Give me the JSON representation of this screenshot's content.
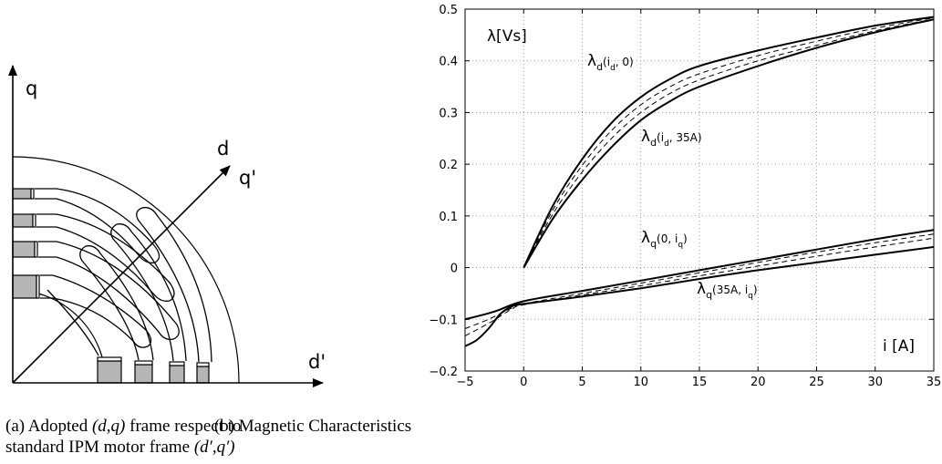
{
  "left_diagram": {
    "axis_q_label": "q",
    "axis_d_label": "d",
    "axis_q_prime_label": "q'",
    "axis_d_prime_label": "d'"
  },
  "captions": {
    "a_tag": "(a)",
    "a_text_1": "Adopted",
    "a_math_1": "(d,q)",
    "a_text_2": "frame respect to",
    "a_text_3": "standard IPM motor frame",
    "a_math_2": "(d′,q′)",
    "b_text": "(b) Magnetic Characteristics"
  },
  "chart_data": {
    "type": "line",
    "y_unit_label": "λ[Vs]",
    "x_unit_label": "i [A]",
    "xlim": [
      -5,
      35
    ],
    "ylim": [
      -0.2,
      0.5
    ],
    "x_ticks": [
      "−5",
      "0",
      "5",
      "10",
      "15",
      "20",
      "25",
      "30",
      "35"
    ],
    "y_ticks": [
      "−0.2",
      "−0.1",
      "0",
      "0.1",
      "0.2",
      "0.3",
      "0.4",
      "0.5"
    ],
    "grid": true,
    "annotations": {
      "ld0": {
        "sym": "λ",
        "sub": "d",
        "args": "(i",
        "argsub": "d",
        "argend": ", 0)"
      },
      "ld35": {
        "sym": "λ",
        "sub": "d",
        "args": "(i",
        "argsub": "d",
        "argend": ", 35A)"
      },
      "lq0": {
        "sym": "λ",
        "sub": "q",
        "args": "(0, i",
        "argsub": "q",
        "argend": ")"
      },
      "lq35": {
        "sym": "λ",
        "sub": "q",
        "args": "(35A, i",
        "argsub": "q",
        "argend": ")"
      }
    },
    "series": [
      {
        "style": "solid",
        "x": [
          0,
          2.5,
          5,
          7.5,
          10,
          12.5,
          15,
          20,
          25,
          30,
          35
        ],
        "y": [
          0,
          0.12,
          0.21,
          0.28,
          0.33,
          0.365,
          0.39,
          0.42,
          0.445,
          0.468,
          0.485
        ]
      },
      {
        "style": "dashed",
        "x": [
          0,
          2.5,
          5,
          7.5,
          10,
          12.5,
          15,
          20,
          25,
          30,
          35
        ],
        "y": [
          0,
          0.112,
          0.198,
          0.265,
          0.315,
          0.35,
          0.375,
          0.41,
          0.438,
          0.463,
          0.483
        ]
      },
      {
        "style": "dashed",
        "x": [
          0,
          2.5,
          5,
          7.5,
          10,
          12.5,
          15,
          20,
          25,
          30,
          35
        ],
        "y": [
          0,
          0.104,
          0.185,
          0.25,
          0.3,
          0.337,
          0.363,
          0.4,
          0.43,
          0.458,
          0.481
        ]
      },
      {
        "style": "solid",
        "x": [
          0,
          2.5,
          5,
          7.5,
          10,
          12.5,
          15,
          20,
          25,
          30,
          35
        ],
        "y": [
          0,
          0.095,
          0.17,
          0.233,
          0.285,
          0.322,
          0.35,
          0.39,
          0.425,
          0.455,
          0.48
        ]
      },
      {
        "style": "solid",
        "x": [
          -5,
          -2.5,
          0,
          5,
          10,
          15,
          20,
          25,
          30,
          35
        ],
        "y": [
          -0.1,
          -0.085,
          -0.065,
          -0.045,
          -0.025,
          -0.005,
          0.015,
          0.035,
          0.055,
          0.073
        ]
      },
      {
        "style": "dashed",
        "x": [
          -5,
          -3,
          -1,
          0,
          5,
          10,
          15,
          20,
          25,
          30,
          35
        ],
        "y": [
          -0.118,
          -0.1,
          -0.078,
          -0.07,
          -0.05,
          -0.03,
          -0.01,
          0.01,
          0.03,
          0.048,
          0.065
        ]
      },
      {
        "style": "dashed",
        "x": [
          -5,
          -3,
          -1,
          0,
          5,
          10,
          15,
          20,
          25,
          30,
          35
        ],
        "y": [
          -0.132,
          -0.108,
          -0.08,
          -0.072,
          -0.053,
          -0.035,
          -0.016,
          0.003,
          0.022,
          0.04,
          0.057
        ]
      },
      {
        "style": "solid",
        "x": [
          -5,
          -4,
          -3,
          -2,
          -1,
          0,
          5,
          10,
          15,
          20,
          25,
          30,
          35
        ],
        "y": [
          -0.152,
          -0.14,
          -0.118,
          -0.09,
          -0.075,
          -0.07,
          -0.056,
          -0.04,
          -0.022,
          -0.005,
          0.01,
          0.025,
          0.04
        ]
      }
    ]
  }
}
